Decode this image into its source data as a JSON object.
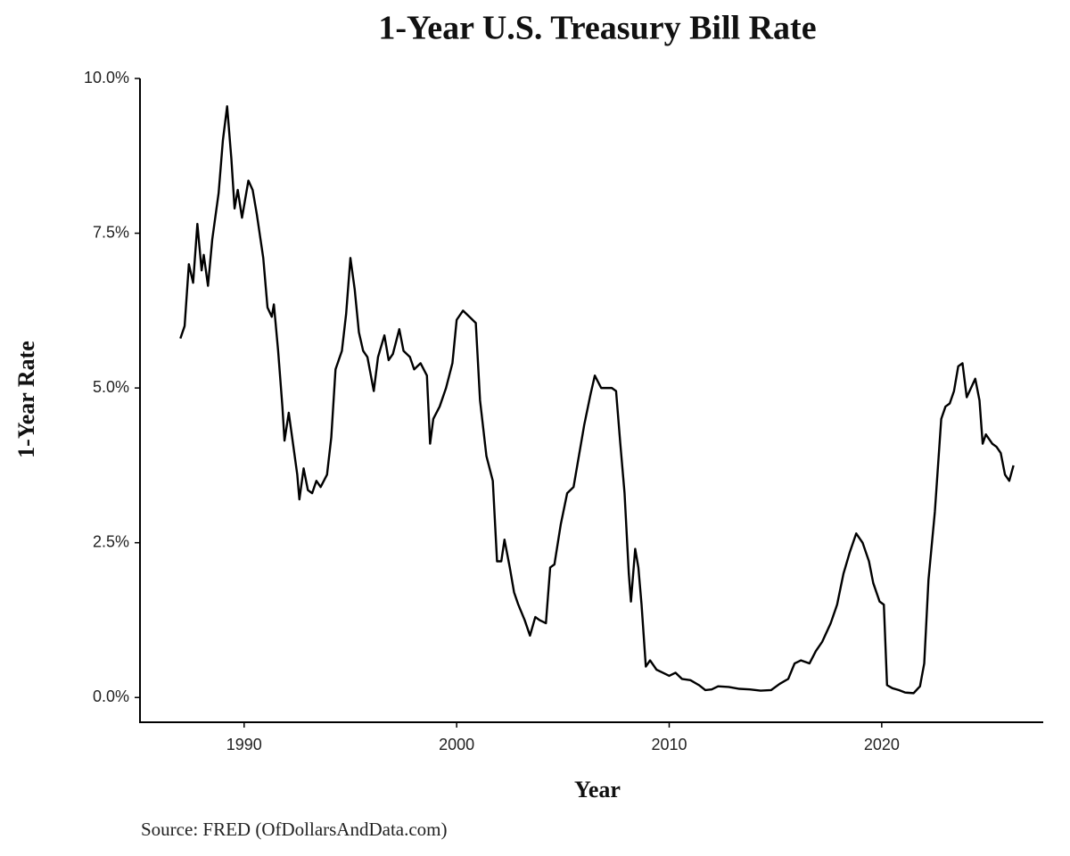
{
  "chart_data": {
    "type": "line",
    "title": "1-Year U.S. Treasury Bill Rate",
    "x_label": "Year",
    "y_label": "1-Year Rate",
    "source": "Source: FRED (OfDollarsAndData.com)",
    "color": "#000000",
    "x": [
      1987.0,
      1987.2,
      1987.4,
      1987.6,
      1987.8,
      1988.0,
      1988.1,
      1988.3,
      1988.5,
      1988.8,
      1989.0,
      1989.2,
      1989.4,
      1989.55,
      1989.7,
      1989.9,
      1990.2,
      1990.4,
      1990.6,
      1990.9,
      1991.1,
      1991.3,
      1991.4,
      1991.6,
      1991.8,
      1991.9,
      1992.1,
      1992.3,
      1992.5,
      1992.6,
      1992.8,
      1993.0,
      1993.2,
      1993.4,
      1993.6,
      1993.9,
      1994.1,
      1994.3,
      1994.6,
      1994.8,
      1995.0,
      1995.2,
      1995.4,
      1995.6,
      1995.8,
      1996.1,
      1996.3,
      1996.6,
      1996.8,
      1997.0,
      1997.3,
      1997.5,
      1997.8,
      1998.0,
      1998.3,
      1998.6,
      1998.75,
      1998.9,
      1999.2,
      1999.5,
      1999.8,
      2000.0,
      2000.3,
      2000.6,
      2000.9,
      2001.1,
      2001.4,
      2001.7,
      2001.9,
      2002.1,
      2002.25,
      2002.5,
      2002.7,
      2002.9,
      2003.2,
      2003.45,
      2003.7,
      2003.9,
      2004.2,
      2004.4,
      2004.6,
      2004.9,
      2005.2,
      2005.5,
      2005.8,
      2006.0,
      2006.3,
      2006.5,
      2006.8,
      2007.0,
      2007.3,
      2007.5,
      2007.7,
      2007.9,
      2008.1,
      2008.2,
      2008.4,
      2008.55,
      2008.7,
      2008.9,
      2009.1,
      2009.4,
      2009.7,
      2010.0,
      2010.3,
      2010.6,
      2011.0,
      2011.4,
      2011.7,
      2012.0,
      2012.3,
      2012.8,
      2013.3,
      2013.8,
      2014.3,
      2014.8,
      2015.2,
      2015.6,
      2015.9,
      2016.2,
      2016.6,
      2016.9,
      2017.2,
      2017.6,
      2017.9,
      2018.2,
      2018.5,
      2018.8,
      2019.1,
      2019.4,
      2019.6,
      2019.9,
      2020.1,
      2020.25,
      2020.5,
      2020.8,
      2021.1,
      2021.5,
      2021.8,
      2022.0,
      2022.2,
      2022.5,
      2022.8,
      2023.0,
      2023.2,
      2023.4,
      2023.6,
      2023.8,
      2024.0,
      2024.2,
      2024.4,
      2024.6,
      2024.75,
      2024.9,
      2025.2,
      2025.4,
      2025.6,
      2025.8,
      2026.0,
      2026.2
    ],
    "values": [
      5.8,
      6.0,
      7.0,
      6.7,
      7.65,
      6.9,
      7.15,
      6.65,
      7.4,
      8.15,
      9.0,
      9.55,
      8.7,
      7.9,
      8.2,
      7.75,
      8.35,
      8.2,
      7.8,
      7.1,
      6.3,
      6.15,
      6.35,
      5.6,
      4.7,
      4.15,
      4.6,
      4.1,
      3.6,
      3.2,
      3.7,
      3.35,
      3.3,
      3.5,
      3.4,
      3.6,
      4.2,
      5.3,
      5.6,
      6.2,
      7.1,
      6.6,
      5.9,
      5.6,
      5.5,
      4.95,
      5.5,
      5.85,
      5.45,
      5.55,
      5.95,
      5.6,
      5.5,
      5.3,
      5.4,
      5.2,
      4.1,
      4.5,
      4.7,
      5.0,
      5.4,
      6.1,
      6.25,
      6.15,
      6.05,
      4.8,
      3.9,
      3.5,
      2.2,
      2.2,
      2.55,
      2.1,
      1.7,
      1.5,
      1.25,
      1.0,
      1.3,
      1.25,
      1.2,
      2.1,
      2.15,
      2.8,
      3.3,
      3.4,
      4.0,
      4.4,
      4.9,
      5.2,
      5.0,
      5.0,
      5.0,
      4.95,
      4.1,
      3.3,
      2.0,
      1.55,
      2.4,
      2.1,
      1.5,
      0.5,
      0.6,
      0.45,
      0.4,
      0.35,
      0.4,
      0.3,
      0.28,
      0.2,
      0.12,
      0.13,
      0.18,
      0.17,
      0.14,
      0.13,
      0.11,
      0.12,
      0.22,
      0.3,
      0.55,
      0.6,
      0.55,
      0.75,
      0.9,
      1.2,
      1.5,
      2.0,
      2.35,
      2.65,
      2.5,
      2.2,
      1.85,
      1.55,
      1.5,
      0.2,
      0.15,
      0.12,
      0.08,
      0.07,
      0.18,
      0.55,
      1.9,
      3.0,
      4.5,
      4.7,
      4.75,
      4.95,
      5.35,
      5.4,
      4.85,
      5.0,
      5.15,
      4.8,
      4.1,
      4.25,
      4.1,
      4.05,
      3.95,
      3.6,
      3.5,
      3.75
    ],
    "xlim": [
      1985.1,
      2027.6
    ],
    "ylim": [
      -0.4,
      10
    ],
    "xticks": [
      1990,
      2000,
      2010,
      2020
    ],
    "yticks": [
      {
        "value": 0,
        "label": "0.0%"
      },
      {
        "value": 2.5,
        "label": "2.5%"
      },
      {
        "value": 5,
        "label": "5.0%"
      },
      {
        "value": 7.5,
        "label": "7.5%"
      },
      {
        "value": 10,
        "label": "10.0%"
      }
    ]
  }
}
